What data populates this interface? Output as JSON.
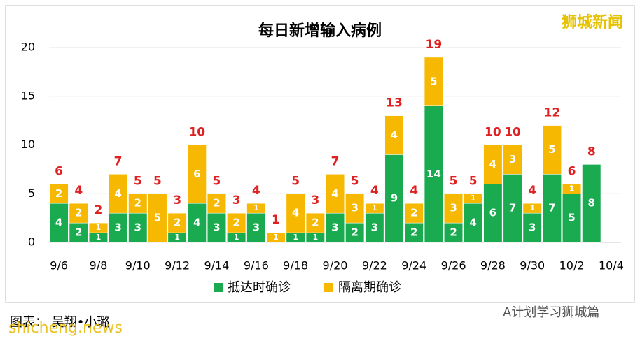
{
  "chart_data": {
    "type": "stacked_bar",
    "title": "每日新增输入病例",
    "categories": [
      "9/6",
      null,
      "9/8",
      null,
      "9/10",
      null,
      "9/12",
      null,
      "9/14",
      null,
      "9/16",
      null,
      "9/18",
      null,
      "9/20",
      null,
      "9/22",
      null,
      "9/24",
      null,
      "9/26",
      null,
      "9/28",
      null,
      "9/30",
      null,
      "10/2",
      null,
      "10/4"
    ],
    "series": [
      {
        "name": "抵达时确诊",
        "color": "#1aab50",
        "values": [
          4,
          2,
          1,
          3,
          3,
          0,
          1,
          4,
          3,
          1,
          3,
          0,
          1,
          1,
          3,
          2,
          3,
          9,
          2,
          14,
          2,
          4,
          6,
          7,
          3,
          7,
          5,
          8,
          null
        ]
      },
      {
        "name": "隔离期确诊",
        "color": "#f6b800",
        "values": [
          2,
          2,
          1,
          4,
          2,
          5,
          2,
          6,
          2,
          2,
          1,
          1,
          4,
          2,
          4,
          3,
          1,
          4,
          2,
          5,
          3,
          1,
          4,
          3,
          1,
          5,
          1,
          0,
          null
        ]
      }
    ],
    "totals": [
      6,
      4,
      2,
      7,
      5,
      5,
      3,
      10,
      5,
      3,
      4,
      1,
      5,
      3,
      7,
      5,
      4,
      13,
      4,
      19,
      5,
      5,
      10,
      10,
      4,
      12,
      6,
      8,
      null
    ],
    "ylim": [
      0,
      20
    ],
    "yticks": [
      0,
      5,
      10,
      15,
      20
    ],
    "grid": true,
    "legend": "bottom"
  },
  "watermark": "狮城新闻",
  "credit": "图表：  吴翔•小璐",
  "site": "shicheng.news",
  "account": "A计划学习狮城篇"
}
